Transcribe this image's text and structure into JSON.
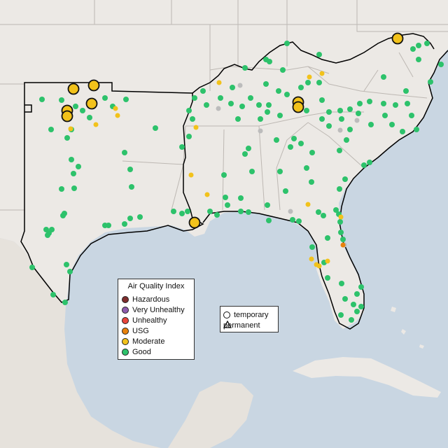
{
  "legend": {
    "title": "Air Quality Index",
    "categories": [
      {
        "label": "Hazardous",
        "color": "#7e2d2d"
      },
      {
        "label": "Very Unhealthy",
        "color": "#8e5cae"
      },
      {
        "label": "Unhealthy",
        "color": "#e8453c"
      },
      {
        "label": "USG",
        "color": "#e8820c"
      },
      {
        "label": "Moderate",
        "color": "#f2c21b"
      },
      {
        "label": "Good",
        "color": "#2dc26b"
      }
    ]
  },
  "shape_legend": {
    "temporary": "temporary",
    "permanent": "permanent"
  },
  "colors": {
    "land": "#ece9e5",
    "water": "#c9d6e2",
    "border": "#bdb8b3",
    "outline": "#000000",
    "inactive": "#bcbcbc"
  }
}
